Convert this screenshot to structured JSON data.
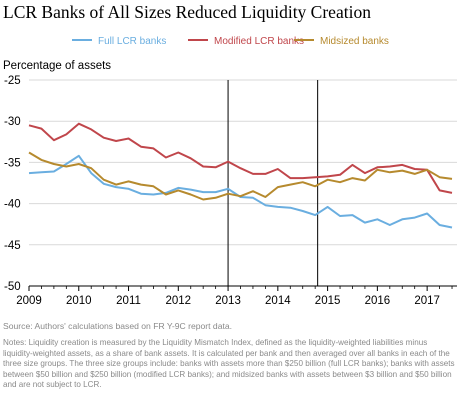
{
  "chart_data": {
    "type": "line",
    "title": "LCR Banks of All Sizes Reduced Liquidity Creation",
    "ylabel": "Percentage  of assets",
    "xlabel": "",
    "xlim": [
      2009.0,
      2017.6
    ],
    "ylim": [
      -50,
      -25
    ],
    "x_ticks": [
      "2009",
      "2010",
      "2011",
      "2012",
      "2013",
      "2014",
      "2015",
      "2016",
      "2017"
    ],
    "y_ticks": [
      "-25",
      "-30",
      "-35",
      "-40",
      "-45",
      "-50"
    ],
    "legend_position": "top",
    "grid": "horizontal",
    "vertical_markers": [
      2013.0,
      2014.8
    ],
    "x": [
      2009.0,
      2009.25,
      2009.5,
      2009.75,
      2010.0,
      2010.25,
      2010.5,
      2010.75,
      2011.0,
      2011.25,
      2011.5,
      2011.75,
      2012.0,
      2012.25,
      2012.5,
      2012.75,
      2013.0,
      2013.25,
      2013.5,
      2013.75,
      2014.0,
      2014.25,
      2014.5,
      2014.75,
      2015.0,
      2015.25,
      2015.5,
      2015.75,
      2016.0,
      2016.25,
      2016.5,
      2016.75,
      2017.0,
      2017.25,
      2017.5
    ],
    "series": [
      {
        "name": "Full LCR banks",
        "color": "#6aaee0",
        "values": [
          -36.3,
          -36.2,
          -36.1,
          -35.2,
          -34.2,
          -36.3,
          -37.6,
          -38.0,
          -38.2,
          -38.8,
          -38.9,
          -38.7,
          -38.1,
          -38.3,
          -38.6,
          -38.6,
          -38.2,
          -39.2,
          -39.3,
          -40.2,
          -40.4,
          -40.5,
          -40.9,
          -41.4,
          -40.4,
          -41.5,
          -41.4,
          -42.3,
          -41.9,
          -42.6,
          -41.9,
          -41.7,
          -41.2,
          -42.6,
          -42.9
        ]
      },
      {
        "name": "Modified LCR banks",
        "color": "#c0464b",
        "values": [
          -30.5,
          -30.9,
          -32.3,
          -31.6,
          -30.3,
          -31.0,
          -32.0,
          -32.4,
          -32.1,
          -33.1,
          -33.3,
          -34.4,
          -33.8,
          -34.5,
          -35.5,
          -35.6,
          -34.9,
          -35.7,
          -36.4,
          -36.4,
          -35.8,
          -36.9,
          -36.9,
          -36.8,
          -36.7,
          -36.5,
          -35.3,
          -36.3,
          -35.6,
          -35.5,
          -35.3,
          -35.8,
          -35.9,
          -38.4,
          -38.7
        ]
      },
      {
        "name": "Midsized banks",
        "color": "#b68a2e",
        "values": [
          -33.8,
          -34.7,
          -35.2,
          -35.5,
          -35.2,
          -35.7,
          -37.1,
          -37.7,
          -37.3,
          -37.7,
          -37.9,
          -38.9,
          -38.4,
          -38.9,
          -39.5,
          -39.3,
          -38.8,
          -39.1,
          -38.5,
          -39.2,
          -38.0,
          -37.7,
          -37.4,
          -37.9,
          -37.1,
          -37.4,
          -36.9,
          -37.2,
          -35.9,
          -36.2,
          -36.0,
          -36.4,
          -35.9,
          -36.8,
          -37.0
        ]
      }
    ]
  },
  "source_note": "Source: Authors' calculations based on FR Y-9C report data.",
  "notes": "Notes: Liquidity creation is measured by the Liquidity Mismatch Index, defined as the liquidity-weighted liabilities minus liquidity-weighted assets, as a share of bank assets. It is calculated per bank and then averaged over all banks in each of the three size groups. The three size groups include: banks with assets more than $250 billion (full LCR banks); banks with assets between $50 billion and $250 billion (modified LCR banks); and midsized banks with assets between $3 billion and $50 billion and are not subject to LCR."
}
